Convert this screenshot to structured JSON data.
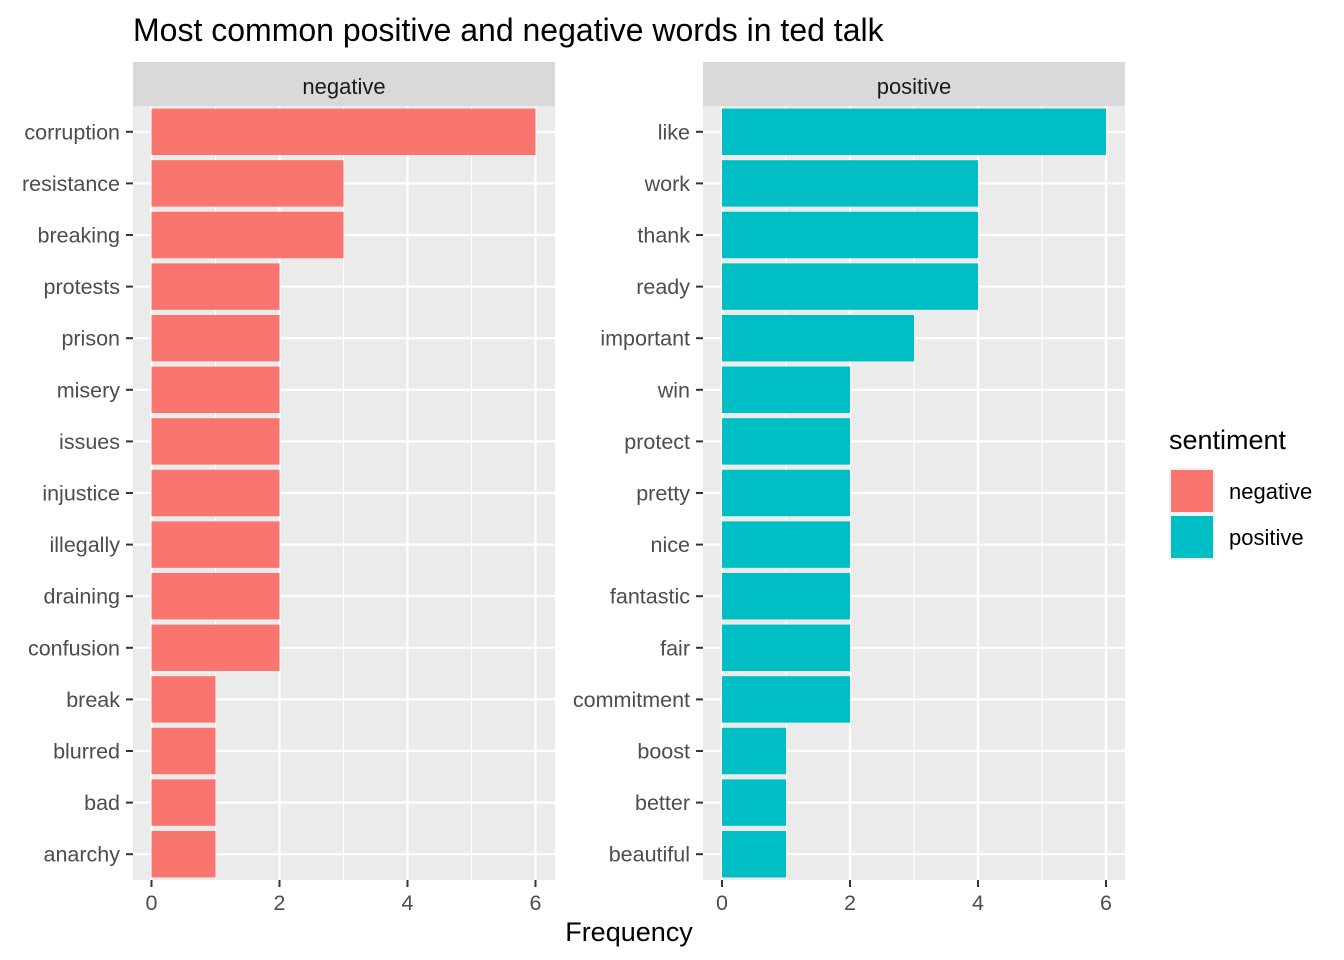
{
  "chart_data": {
    "type": "bar",
    "orientation": "horizontal",
    "title": "Most common positive and negative words in ted talk",
    "xlabel": "Frequency",
    "ylabel": "",
    "xlim": [
      0,
      6
    ],
    "x_ticks": [
      "0",
      "2",
      "4",
      "6"
    ],
    "grid": true,
    "legend": {
      "title": "sentiment",
      "placement": "right",
      "entries": [
        "negative",
        "positive"
      ]
    },
    "colors": {
      "negative": "#F8766D",
      "positive": "#00BFC4",
      "panel_background": "#EBEBEB",
      "strip_background": "#D9D9D9",
      "grid": "#FFFFFF"
    },
    "facets": [
      {
        "name": "negative",
        "categories": [
          "corruption",
          "resistance",
          "breaking",
          "protests",
          "prison",
          "misery",
          "issues",
          "injustice",
          "illegally",
          "draining",
          "confusion",
          "break",
          "blurred",
          "bad",
          "anarchy"
        ],
        "values": [
          6,
          3,
          3,
          2,
          2,
          2,
          2,
          2,
          2,
          2,
          2,
          1,
          1,
          1,
          1
        ]
      },
      {
        "name": "positive",
        "categories": [
          "like",
          "work",
          "thank",
          "ready",
          "important",
          "win",
          "protect",
          "pretty",
          "nice",
          "fantastic",
          "fair",
          "commitment",
          "boost",
          "better",
          "beautiful"
        ],
        "values": [
          6,
          4,
          4,
          4,
          3,
          2,
          2,
          2,
          2,
          2,
          2,
          2,
          1,
          1,
          1
        ]
      }
    ]
  }
}
